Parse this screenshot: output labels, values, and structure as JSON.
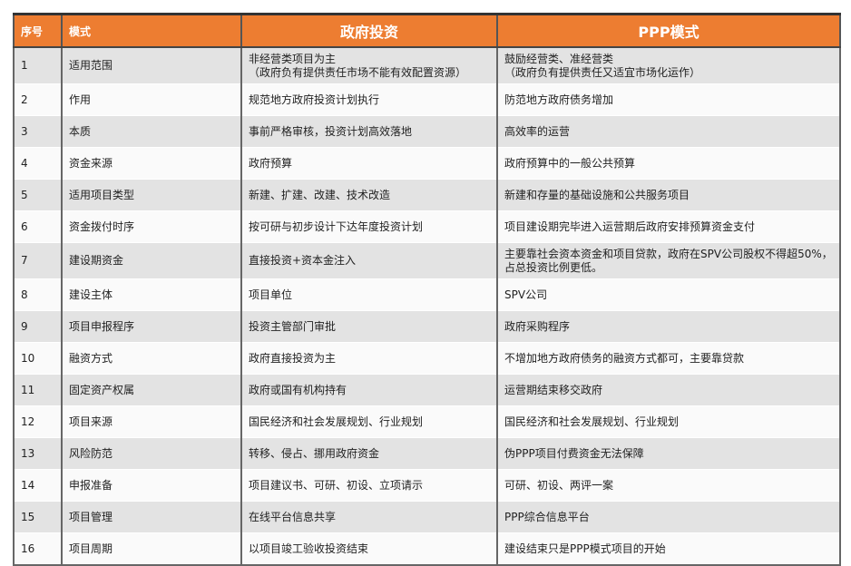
{
  "header": {
    "col_index": "序号",
    "col_mode": "模式",
    "col_gov": "政府投资",
    "col_ppp": "PPP模式"
  },
  "colors": {
    "header_bg": "#ed7d31",
    "row_alt": "#e3e3e3"
  },
  "rows": [
    {
      "no": "1",
      "item": "适用范围",
      "gov": "非经营类项目为主\n（政府负有提供责任市场不能有效配置资源）",
      "ppp": "鼓励经营类、准经营类\n（政府负有提供责任又适宜市场化运作）"
    },
    {
      "no": "2",
      "item": "作用",
      "gov": "规范地方政府投资计划执行",
      "ppp": "防范地方政府债务增加"
    },
    {
      "no": "3",
      "item": "本质",
      "gov": "事前严格审核，投资计划高效落地",
      "ppp": "高效率的运营"
    },
    {
      "no": "4",
      "item": "资金来源",
      "gov": "政府预算",
      "ppp": "政府预算中的一般公共预算"
    },
    {
      "no": "5",
      "item": "适用项目类型",
      "gov": "新建、扩建、改建、技术改造",
      "ppp": "新建和存量的基础设施和公共服务项目"
    },
    {
      "no": "6",
      "item": "资金拨付时序",
      "gov": "按可研与初步设计下达年度投资计划",
      "ppp": "项目建设期完毕进入运营期后政府安排预算资金支付"
    },
    {
      "no": "7",
      "item": "建设期资金",
      "gov": "直接投资+资本金注入",
      "ppp": "主要靠社会资本资金和项目贷款，政府在SPV公司股权不得超50%，占总投资比例更低。"
    },
    {
      "no": "8",
      "item": "建设主体",
      "gov": "项目单位",
      "ppp": "SPV公司"
    },
    {
      "no": "9",
      "item": "项目申报程序",
      "gov": "投资主管部门审批",
      "ppp": "政府采购程序"
    },
    {
      "no": "10",
      "item": "融资方式",
      "gov": "政府直接投资为主",
      "ppp": "不增加地方政府债务的融资方式都可，主要靠贷款"
    },
    {
      "no": "11",
      "item": "固定资产权属",
      "gov": "政府或国有机构持有",
      "ppp": "运营期结束移交政府"
    },
    {
      "no": "12",
      "item": "项目来源",
      "gov": "国民经济和社会发展规划、行业规划",
      "ppp": "国民经济和社会发展规划、行业规划"
    },
    {
      "no": "13",
      "item": "风险防范",
      "gov": "转移、侵占、挪用政府资金",
      "ppp": "伪PPP项目付费资金无法保障"
    },
    {
      "no": "14",
      "item": "申报准备",
      "gov": "项目建议书、可研、初设、立项请示",
      "ppp": "可研、初设、两评一案"
    },
    {
      "no": "15",
      "item": "项目管理",
      "gov": "在线平台信息共享",
      "ppp": "PPP综合信息平台"
    },
    {
      "no": "16",
      "item": "项目周期",
      "gov": "以项目竣工验收投资结束",
      "ppp": "建设结束只是PPP模式项目的开始"
    }
  ]
}
